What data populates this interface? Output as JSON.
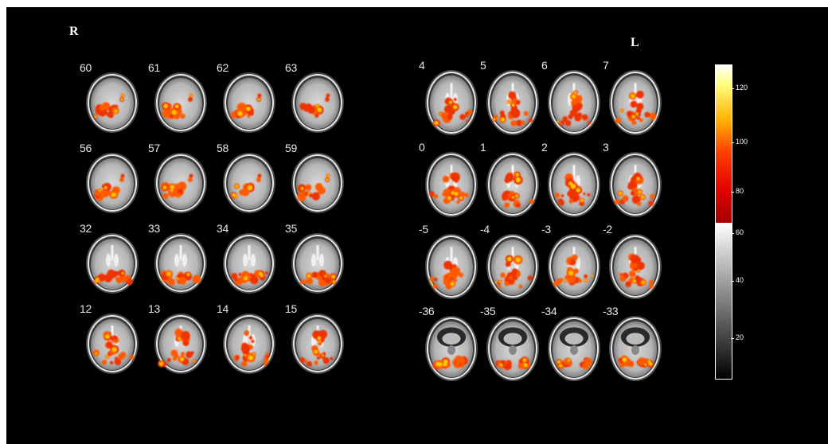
{
  "labels": {
    "right": "R",
    "left": "L"
  },
  "left_panel": {
    "rows": [
      {
        "slices": [
          "60",
          "61",
          "62",
          "63"
        ],
        "view": "top"
      },
      {
        "slices": [
          "56",
          "57",
          "58",
          "59"
        ],
        "view": "top"
      },
      {
        "slices": [
          "32",
          "33",
          "34",
          "35"
        ],
        "view": "mid"
      },
      {
        "slices": [
          "12",
          "13",
          "14",
          "15"
        ],
        "view": "low"
      }
    ]
  },
  "right_panel": {
    "rows": [
      {
        "slices": [
          "4",
          "5",
          "6",
          "7"
        ],
        "view": "low"
      },
      {
        "slices": [
          "0",
          "1",
          "2",
          "3"
        ],
        "view": "low"
      },
      {
        "slices": [
          "-5",
          "-4",
          "-3",
          "-2"
        ],
        "view": "low"
      },
      {
        "slices": [
          "-36",
          "-35",
          "-34",
          "-33"
        ],
        "view": "cerebellum"
      }
    ]
  },
  "colorbar": {
    "ticks": [
      "120",
      "100",
      "80",
      "60",
      "40",
      "20"
    ],
    "colors": {
      "hot_top": "#ffffd0",
      "hot_mid": "#ffb000",
      "hot_low": "#ff4000",
      "hot_bottom": "#b00000",
      "gray_top": "#ffffff",
      "gray_bottom": "#000000"
    }
  }
}
